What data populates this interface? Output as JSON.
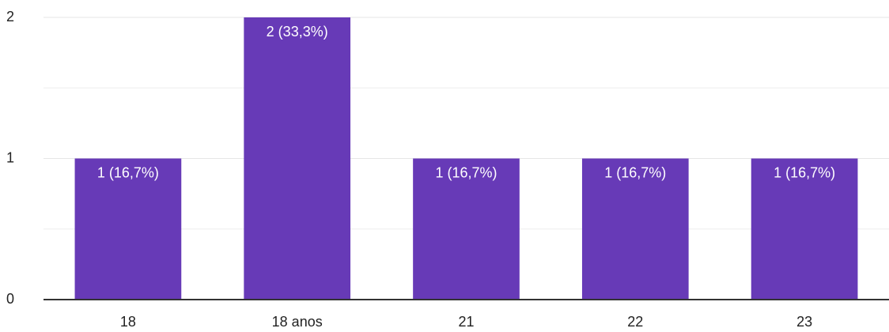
{
  "chart_data": {
    "type": "bar",
    "categories": [
      "18",
      "18 anos",
      "21",
      "22",
      "23"
    ],
    "values": [
      1,
      2,
      1,
      1,
      1
    ],
    "value_labels": [
      "1 (16,7%)",
      "2 (33,3%)",
      "1 (16,7%)",
      "1 (16,7%)",
      "1 (16,7%)"
    ],
    "color": "#673ab7",
    "ylim": [
      0,
      2
    ],
    "yticks": [
      0,
      1,
      2
    ],
    "y_minor_ticks": [
      0.5,
      1.5
    ],
    "grid": true
  }
}
